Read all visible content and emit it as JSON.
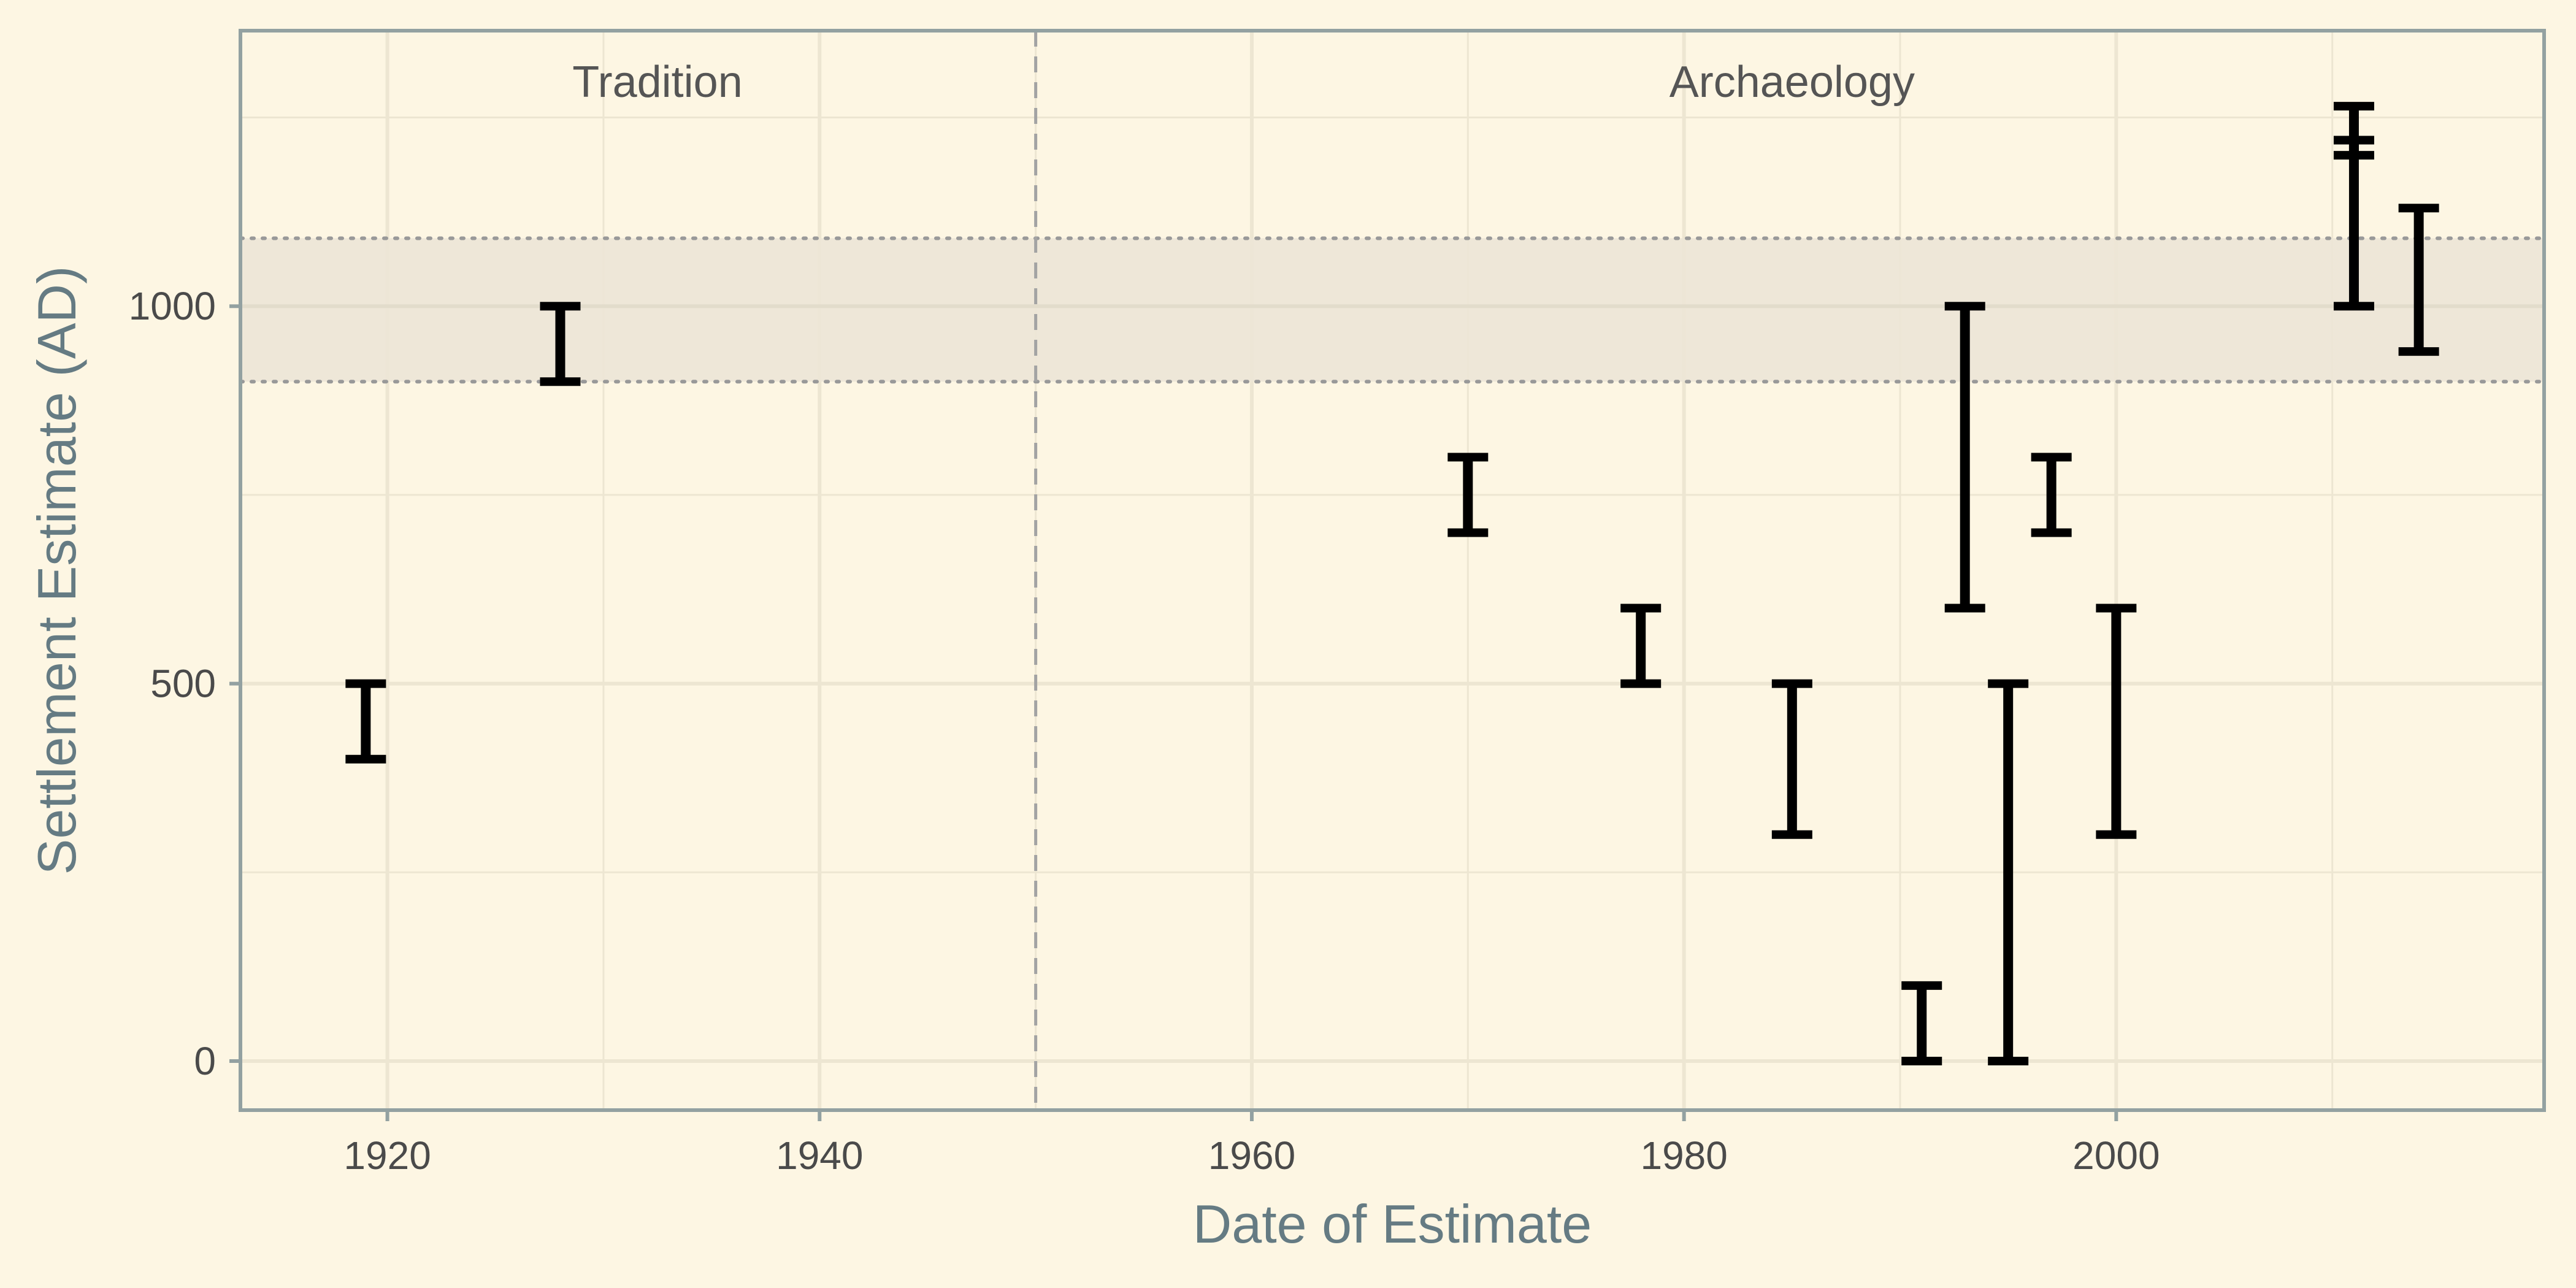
{
  "colors": {
    "background": "#fdf6e3",
    "panel_border": "#93a1a1",
    "grid": "#ede6d2",
    "band_fill": "#ece6d6",
    "band_edge": "#999999",
    "divider": "#a3a3a3",
    "errorbar": "#000000",
    "axis_title": "#657b83",
    "tick_label": "#4a4a4a"
  },
  "chart_data": {
    "type": "errorbar",
    "xlabel": "Date of Estimate",
    "ylabel": "Settlement Estimate (AD)",
    "xlim": [
      1913.2,
      2019.8
    ],
    "ylim": [
      -65,
      1365
    ],
    "x_ticks": [
      1920,
      1940,
      1960,
      1980,
      2000
    ],
    "y_ticks": [
      0,
      500,
      1000
    ],
    "x_minor_grid": [
      1930,
      1950,
      1970,
      1990,
      2010
    ],
    "y_minor_grid": [
      250,
      750,
      1250
    ],
    "grid": true,
    "band": {
      "ymin": 900,
      "ymax": 1090,
      "style": "shaded with dotted edges"
    },
    "divider_x": 1950,
    "regions": [
      {
        "label": "Tradition",
        "x_center": 1932.5
      },
      {
        "label": "Archaeology",
        "x_center": 1985
      }
    ],
    "errorbars": [
      {
        "x": 1919,
        "low": 400,
        "high": 500
      },
      {
        "x": 1928,
        "low": 900,
        "high": 1000
      },
      {
        "x": 1970,
        "low": 700,
        "high": 800
      },
      {
        "x": 1978,
        "low": 500,
        "high": 600
      },
      {
        "x": 1985,
        "low": 300,
        "high": 500
      },
      {
        "x": 1991,
        "low": 0,
        "high": 100
      },
      {
        "x": 1993,
        "low": 600,
        "high": 1000
      },
      {
        "x": 1995,
        "low": 0,
        "high": 500
      },
      {
        "x": 1997,
        "low": 700,
        "high": 800
      },
      {
        "x": 2000,
        "low": 300,
        "high": 600
      },
      {
        "x": 2011,
        "low": 1200,
        "high": 1265
      },
      {
        "x": 2011,
        "low": 1000,
        "high": 1220
      },
      {
        "x": 2014,
        "low": 940,
        "high": 1130
      }
    ]
  }
}
